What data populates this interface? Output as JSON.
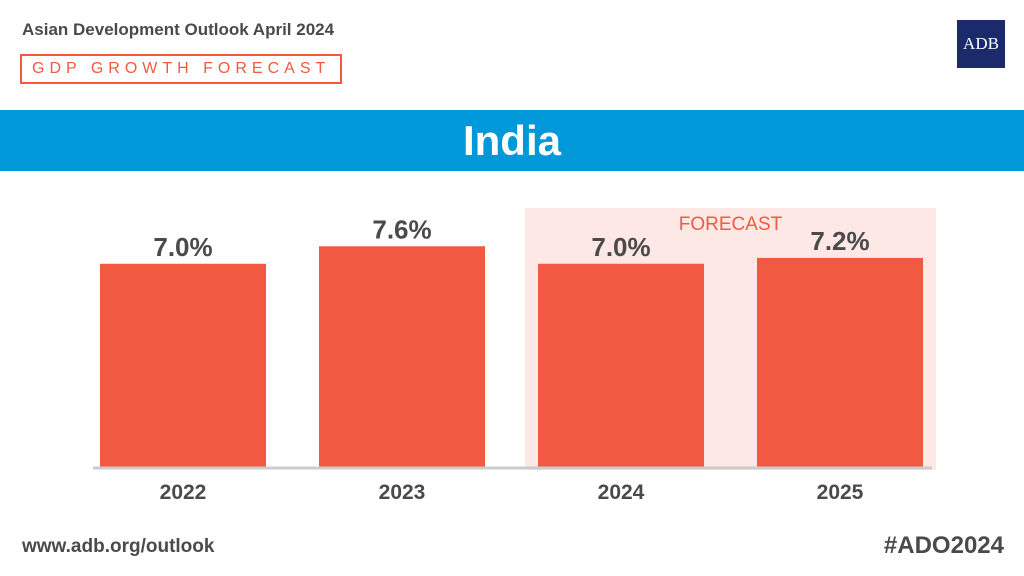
{
  "header": {
    "title": "Asian Development Outlook April 2024",
    "subtitle": "GDP GROWTH FORECAST",
    "logo_text": "ADB"
  },
  "banner": {
    "country": "India"
  },
  "footer": {
    "url": "www.adb.org/outlook",
    "hashtag": "#ADO2024"
  },
  "colors": {
    "bar": "#f15a40",
    "banner": "#0098d8",
    "forecast_bg": "#fde8e5",
    "logo_bg": "#1b2a6b",
    "text": "#4a4a4a"
  },
  "chart_data": {
    "type": "bar",
    "title": "",
    "xlabel": "",
    "ylabel": "",
    "categories": [
      "2022",
      "2023",
      "2024",
      "2025"
    ],
    "values": [
      7.0,
      7.6,
      7.0,
      7.2
    ],
    "value_labels": [
      "7.0%",
      "7.6%",
      "7.0%",
      "7.2%"
    ],
    "ylim": [
      0,
      8.5
    ],
    "grid": false,
    "forecast_label": "FORECAST",
    "forecast_categories": [
      "2024",
      "2025"
    ]
  }
}
